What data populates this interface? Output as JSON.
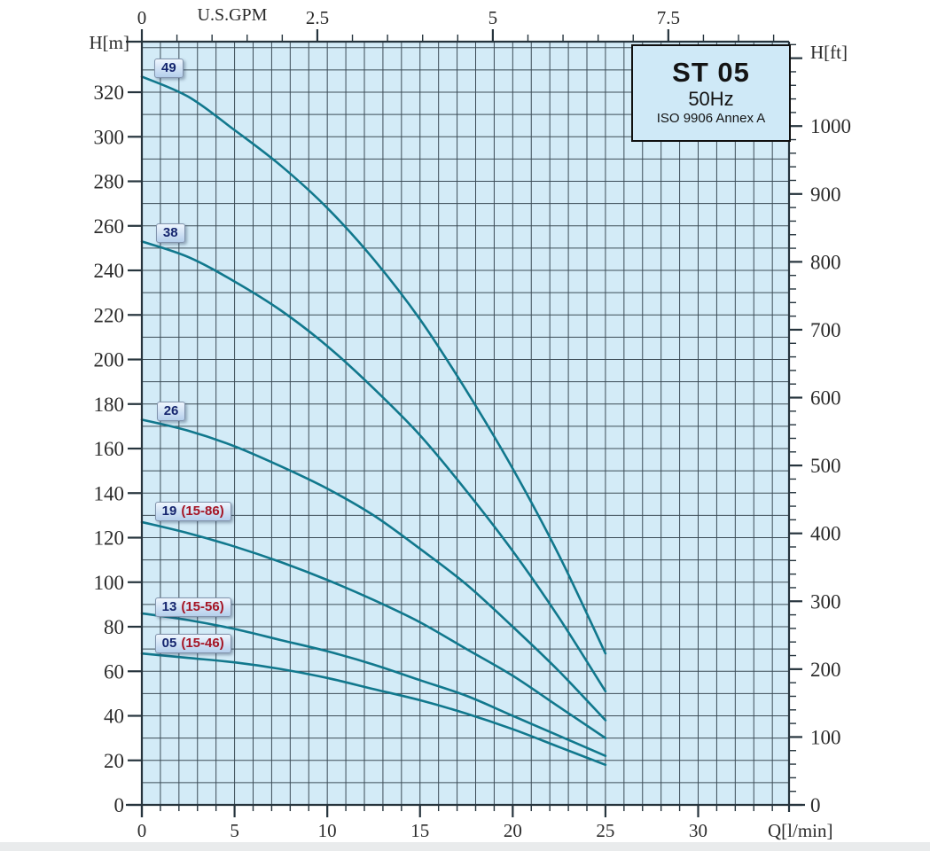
{
  "title_box": {
    "model": "ST 05",
    "frequency": "50Hz",
    "standard": "ISO 9906 Annex A"
  },
  "colors": {
    "plot_bg": "#d3ebf7",
    "grid": "#3c4c57",
    "frame": "#26343d",
    "curve": "#11788d",
    "axis_text": "#2b2b2b",
    "label_box_text": "#15256e",
    "label_box_paren": "#a51525",
    "label_box_border": "#8193ac",
    "label_box_bg_top": "#eef6fe",
    "label_box_bg_bottom": "#b5cfec",
    "title_box_bg": "#cfe9f7",
    "title_box_border": "#101010",
    "footer_strip": "#e9ebec"
  },
  "chart_data": {
    "type": "line",
    "title": "ST 05 50Hz ISO 9906 Annex A",
    "xlabel": "Q[l/min]",
    "ylabel": "H[m]",
    "grid": true,
    "legend_position": "labels-on-curves",
    "axes": {
      "bottom": {
        "unit": "Q[l/min]",
        "min": 0,
        "max": 34.9,
        "minor_step": 1,
        "minor_max": 34,
        "major_ticks": [
          0,
          5,
          10,
          15,
          20,
          25,
          30
        ],
        "tick_labels": [
          "0",
          "5",
          "10",
          "15",
          "20",
          "25",
          "30"
        ]
      },
      "top": {
        "unit": "U.S.GPM",
        "lmin_per_gpm": 3.78541,
        "minor_step": 0.5,
        "minor_max": 9,
        "major_ticks": [
          0,
          2.5,
          5,
          7.5
        ],
        "tick_labels": [
          "0",
          "2.5",
          "5",
          "7.5"
        ]
      },
      "left": {
        "unit": "H[m]",
        "min": 0,
        "max": 342.7,
        "grid_step": 10,
        "grid_max": 340,
        "major_step": 20,
        "major_ticks": [
          0,
          20,
          40,
          60,
          80,
          100,
          120,
          140,
          160,
          180,
          200,
          220,
          240,
          260,
          280,
          300,
          320
        ],
        "tick_labels": [
          "0",
          "20",
          "40",
          "60",
          "80",
          "100",
          "120",
          "140",
          "160",
          "180",
          "200",
          "220",
          "240",
          "260",
          "280",
          "300",
          "320"
        ]
      },
      "right": {
        "unit": "H[ft]",
        "ft_per_m": 3.28084,
        "minor_step": 20,
        "minor_max": 1120,
        "major_step": 100,
        "major_max": 1100,
        "major_ticks": [
          0,
          100,
          200,
          300,
          400,
          500,
          600,
          700,
          800,
          900,
          1000,
          1100
        ],
        "tick_labels": [
          "0",
          "100",
          "200",
          "300",
          "400",
          "500",
          "600",
          "700",
          "800",
          "900",
          "1000"
        ]
      }
    },
    "series": [
      {
        "name": "49",
        "label": "49",
        "label_paren": "",
        "label_at": [
          0.67,
          335
        ],
        "points": [
          [
            0,
            327
          ],
          [
            2.5,
            318
          ],
          [
            5,
            303
          ],
          [
            7.5,
            287
          ],
          [
            10,
            268
          ],
          [
            12.5,
            245
          ],
          [
            15,
            218
          ],
          [
            17.5,
            186
          ],
          [
            20,
            151
          ],
          [
            22.5,
            112
          ],
          [
            25,
            68
          ]
        ]
      },
      {
        "name": "38",
        "label": "38",
        "label_paren": "",
        "label_at": [
          0.76,
          261
        ],
        "points": [
          [
            0,
            253
          ],
          [
            2.5,
            246
          ],
          [
            5,
            235
          ],
          [
            7.5,
            222
          ],
          [
            10,
            206
          ],
          [
            12.5,
            187
          ],
          [
            15,
            166
          ],
          [
            17.5,
            141
          ],
          [
            20,
            114
          ],
          [
            22.5,
            84
          ],
          [
            25,
            51
          ]
        ]
      },
      {
        "name": "26",
        "label": "26",
        "label_paren": "",
        "label_at": [
          0.8,
          181
        ],
        "points": [
          [
            0,
            173
          ],
          [
            2.5,
            168
          ],
          [
            5,
            161
          ],
          [
            7.5,
            152
          ],
          [
            10,
            142
          ],
          [
            12.5,
            130
          ],
          [
            15,
            115
          ],
          [
            17.5,
            99
          ],
          [
            20,
            80
          ],
          [
            22.5,
            60
          ],
          [
            25,
            38
          ]
        ]
      },
      {
        "name": "19 (15-86)",
        "label": "19",
        "label_paren": "(15-86)",
        "label_at": [
          0.7,
          136
        ],
        "points": [
          [
            0,
            127
          ],
          [
            2.5,
            122
          ],
          [
            5,
            116
          ],
          [
            7.5,
            109
          ],
          [
            10,
            101
          ],
          [
            12.5,
            92
          ],
          [
            15,
            82
          ],
          [
            17.5,
            70
          ],
          [
            20,
            58
          ],
          [
            22.5,
            44
          ],
          [
            25,
            30
          ]
        ]
      },
      {
        "name": "13 (15-56)",
        "label": "13",
        "label_paren": "(15-56)",
        "label_at": [
          0.7,
          93
        ],
        "points": [
          [
            0,
            86
          ],
          [
            2.5,
            83
          ],
          [
            5,
            79
          ],
          [
            7.5,
            74
          ],
          [
            10,
            69
          ],
          [
            12.5,
            63
          ],
          [
            15,
            56
          ],
          [
            17.5,
            49
          ],
          [
            20,
            40
          ],
          [
            22.5,
            31
          ],
          [
            25,
            22
          ]
        ]
      },
      {
        "name": "05 (15-46)",
        "label": "05",
        "label_paren": "(15-46)",
        "label_at": [
          0.7,
          77
        ],
        "points": [
          [
            0,
            68
          ],
          [
            2.5,
            66
          ],
          [
            5,
            64
          ],
          [
            7.5,
            61
          ],
          [
            10,
            57
          ],
          [
            12.5,
            52
          ],
          [
            15,
            47
          ],
          [
            17.5,
            41
          ],
          [
            20,
            34
          ],
          [
            22.5,
            26
          ],
          [
            25,
            18
          ]
        ]
      }
    ]
  }
}
